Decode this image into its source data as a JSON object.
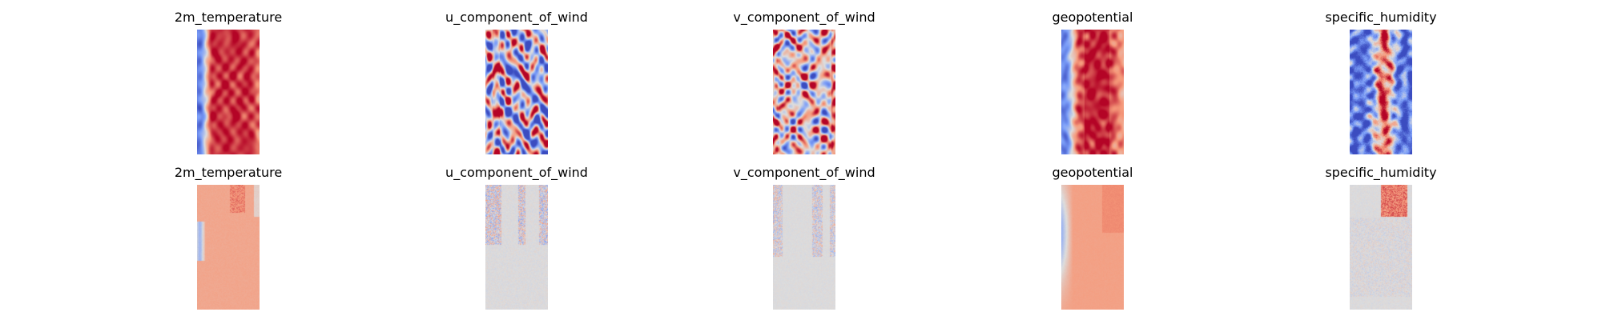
{
  "chart_data": [
    {
      "type": "heatmap",
      "title": "2m_temperature",
      "colormap": "coolwarm",
      "row": "top"
    },
    {
      "type": "heatmap",
      "title": "u_component_of_wind",
      "colormap": "coolwarm",
      "row": "top"
    },
    {
      "type": "heatmap",
      "title": "v_component_of_wind",
      "colormap": "coolwarm",
      "row": "top"
    },
    {
      "type": "heatmap",
      "title": "geopotential",
      "colormap": "coolwarm",
      "row": "top"
    },
    {
      "type": "heatmap",
      "title": "specific_humidity",
      "colormap": "coolwarm",
      "row": "top"
    },
    {
      "type": "heatmap",
      "title": "2m_temperature",
      "colormap": "coolwarm",
      "row": "bottom"
    },
    {
      "type": "heatmap",
      "title": "u_component_of_wind",
      "colormap": "coolwarm",
      "row": "bottom"
    },
    {
      "type": "heatmap",
      "title": "v_component_of_wind",
      "colormap": "coolwarm",
      "row": "bottom"
    },
    {
      "type": "heatmap",
      "title": "geopotential",
      "colormap": "coolwarm",
      "row": "bottom"
    },
    {
      "type": "heatmap",
      "title": "specific_humidity",
      "colormap": "coolwarm",
      "row": "bottom"
    }
  ]
}
